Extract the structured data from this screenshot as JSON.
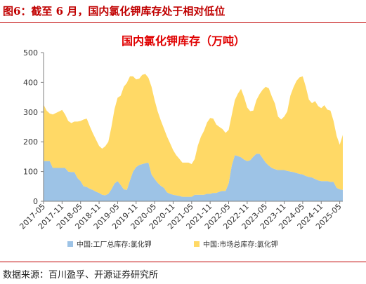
{
  "header": {
    "figure_label": "图6：截至 6 月，国内氯化钾库存处于相对低位"
  },
  "footer": {
    "source": "数据来源：百川盈孚、开源证券研究所"
  },
  "chart_data": {
    "type": "area",
    "stacked": true,
    "title": "国内氯化钾库存（万吨）",
    "xlabel": "",
    "ylabel": "",
    "ylim": [
      0,
      500
    ],
    "yticks": [
      0,
      100,
      200,
      300,
      400,
      500
    ],
    "xticks": [
      "2017-05",
      "2017-11",
      "2018-05",
      "2018-11",
      "2019-05",
      "2019-11",
      "2020-05",
      "2020-11",
      "2021-05",
      "2021-11",
      "2022-05",
      "2022-11",
      "2023-05",
      "2023-11",
      "2024-05",
      "2024-11",
      "2025-05"
    ],
    "grid": false,
    "legend": "bottom",
    "colors": {
      "factory": "#9dc3e6",
      "market": "#ffd966",
      "title": "#e00000",
      "rule": "#c00000"
    },
    "x": [
      "2017-05",
      "2017-06",
      "2017-07",
      "2017-08",
      "2017-09",
      "2017-10",
      "2017-11",
      "2017-12",
      "2018-01",
      "2018-02",
      "2018-03",
      "2018-04",
      "2018-05",
      "2018-06",
      "2018-07",
      "2018-08",
      "2018-09",
      "2018-10",
      "2018-11",
      "2018-12",
      "2019-01",
      "2019-02",
      "2019-03",
      "2019-04",
      "2019-05",
      "2019-06",
      "2019-07",
      "2019-08",
      "2019-09",
      "2019-10",
      "2019-11",
      "2019-12",
      "2020-01",
      "2020-02",
      "2020-03",
      "2020-04",
      "2020-05",
      "2020-06",
      "2020-07",
      "2020-08",
      "2020-09",
      "2020-10",
      "2020-11",
      "2020-12",
      "2021-01",
      "2021-02",
      "2021-03",
      "2021-04",
      "2021-05",
      "2021-06",
      "2021-07",
      "2021-08",
      "2021-09",
      "2021-10",
      "2021-11",
      "2021-12",
      "2022-01",
      "2022-02",
      "2022-03",
      "2022-04",
      "2022-05",
      "2022-06",
      "2022-07",
      "2022-08",
      "2022-09",
      "2022-10",
      "2022-11",
      "2022-12",
      "2023-01",
      "2023-02",
      "2023-03",
      "2023-04",
      "2023-05",
      "2023-06",
      "2023-07",
      "2023-08",
      "2023-09",
      "2023-10",
      "2023-11",
      "2023-12",
      "2024-01",
      "2024-02",
      "2024-03",
      "2024-04",
      "2024-05",
      "2024-06",
      "2024-07",
      "2024-08",
      "2024-09",
      "2024-10",
      "2024-11",
      "2024-12",
      "2025-01",
      "2025-02",
      "2025-03",
      "2025-04",
      "2025-05",
      "2025-06"
    ],
    "series": [
      {
        "name": "中国:工厂总库存:氯化钾",
        "values": [
          135,
          135,
          135,
          112,
          112,
          112,
          112,
          112,
          100,
          98,
          98,
          78,
          68,
          50,
          48,
          42,
          38,
          32,
          28,
          22,
          20,
          25,
          40,
          60,
          68,
          55,
          40,
          38,
          70,
          100,
          115,
          122,
          125,
          128,
          130,
          90,
          75,
          62,
          52,
          45,
          30,
          25,
          22,
          20,
          18,
          15,
          15,
          15,
          15,
          22,
          22,
          22,
          22,
          25,
          25,
          28,
          28,
          32,
          35,
          35,
          60,
          120,
          155,
          152,
          148,
          140,
          135,
          138,
          150,
          160,
          160,
          145,
          130,
          120,
          112,
          108,
          105,
          105,
          105,
          102,
          100,
          98,
          95,
          92,
          90,
          85,
          82,
          80,
          75,
          70,
          68,
          68,
          68,
          65,
          65,
          45,
          40,
          38
        ]
      },
      {
        "name": "中国:市场总库存:氯化钾",
        "values": [
          190,
          170,
          160,
          180,
          185,
          190,
          195,
          180,
          170,
          165,
          170,
          190,
          202,
          225,
          230,
          210,
          190,
          175,
          158,
          155,
          165,
          175,
          210,
          250,
          280,
          300,
          345,
          360,
          350,
          320,
          295,
          290,
          300,
          300,
          285,
          295,
          265,
          240,
          220,
          200,
          188,
          170,
          150,
          135,
          125,
          115,
          115,
          115,
          110,
          120,
          165,
          195,
          215,
          240,
          255,
          250,
          230,
          218,
          208,
          195,
          180,
          170,
          185,
          210,
          230,
          210,
          180,
          165,
          155,
          180,
          200,
          230,
          255,
          260,
          240,
          220,
          180,
          170,
          180,
          200,
          255,
          285,
          310,
          325,
          330,
          300,
          260,
          250,
          262,
          250,
          245,
          255,
          240,
          240,
          205,
          175,
          150,
          185
        ]
      }
    ]
  }
}
